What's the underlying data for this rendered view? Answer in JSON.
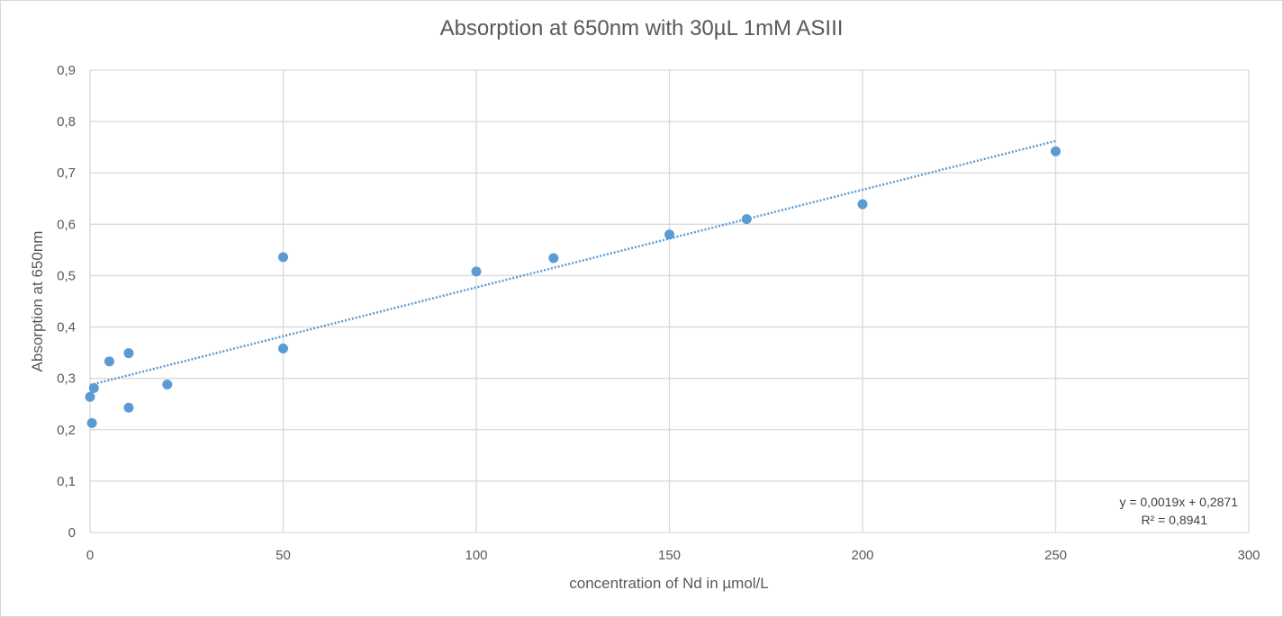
{
  "chart_data": {
    "type": "scatter",
    "title": "Absorption at 650nm with 30µL 1mM ASIII",
    "xlabel": "concentration of Nd in µmol/L",
    "ylabel": "Absorption at 650nm",
    "xlim": [
      0,
      300
    ],
    "ylim": [
      0,
      0.9
    ],
    "x_ticks": [
      0,
      50,
      100,
      150,
      200,
      250,
      300
    ],
    "y_ticks": [
      0,
      0.1,
      0.2,
      0.3,
      0.4,
      0.5,
      0.6,
      0.7,
      0.8,
      0.9
    ],
    "x_tick_labels": [
      "0",
      "50",
      "100",
      "150",
      "200",
      "250",
      "300"
    ],
    "y_tick_labels": [
      "0",
      "0,1",
      "0,2",
      "0,3",
      "0,4",
      "0,5",
      "0,6",
      "0,7",
      "0,8",
      "0,9"
    ],
    "grid": true,
    "colors": {
      "points": "#5b9bd5",
      "trendline": "#5b9bd5",
      "grid": "#d9d9d9",
      "text": "#595959"
    },
    "series": [
      {
        "points": [
          {
            "x": 0,
            "y": 0.264
          },
          {
            "x": 0.5,
            "y": 0.213
          },
          {
            "x": 1,
            "y": 0.281
          },
          {
            "x": 5,
            "y": 0.333
          },
          {
            "x": 10,
            "y": 0.349
          },
          {
            "x": 10,
            "y": 0.243
          },
          {
            "x": 20,
            "y": 0.288
          },
          {
            "x": 50,
            "y": 0.536
          },
          {
            "x": 50,
            "y": 0.358
          },
          {
            "x": 100,
            "y": 0.508
          },
          {
            "x": 120,
            "y": 0.534
          },
          {
            "x": 150,
            "y": 0.58
          },
          {
            "x": 170,
            "y": 0.61
          },
          {
            "x": 200,
            "y": 0.639
          },
          {
            "x": 250,
            "y": 0.742
          }
        ]
      }
    ],
    "trendline": {
      "type": "linear",
      "slope": 0.0019,
      "intercept": 0.2871,
      "x_range": [
        0,
        250
      ],
      "equation_label": "y = 0,0019x + 0,2871",
      "r2_label": "R² = 0,8941"
    }
  }
}
